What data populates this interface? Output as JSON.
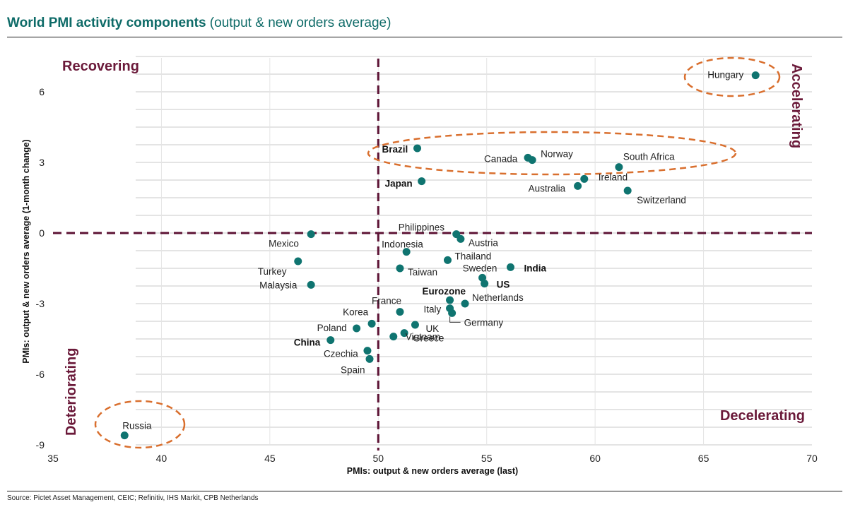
{
  "header": {
    "title_bold": "World PMI activity components",
    "title_rest": " (output & new orders average)"
  },
  "source": "Source: Pictet Asset Management, CEIC; Refinitiv, IHS Markit, CPB Netherlands",
  "colors": {
    "point": "#0f7470",
    "quadrant_line": "#5c1234",
    "quadrant_text": "#6b1a3a",
    "circle": "#d96f2e",
    "grid": "#c8c8c8",
    "title": "#0e6b68"
  },
  "chart_data": {
    "type": "scatter",
    "xlabel": "PMIs: output & new orders average (last)",
    "ylabel": "PMIs: output & new orders average (1-month change)",
    "xlim": [
      35,
      70
    ],
    "ylim": [
      -9,
      7.5
    ],
    "xticks": [
      35,
      40,
      45,
      50,
      55,
      60,
      65,
      70
    ],
    "yticks": [
      -9,
      -6,
      -3,
      0,
      3,
      6
    ],
    "dividers": {
      "x": 50,
      "y": 0
    },
    "quadrants": {
      "top_left": "Recovering",
      "top_right": "Accelerating",
      "bottom_left": "Deteriorating",
      "bottom_right": "Decelerating"
    },
    "points": [
      {
        "name": "Hungary",
        "x": 67.4,
        "y": 6.7,
        "bold": false
      },
      {
        "name": "Brazil",
        "x": 51.8,
        "y": 3.6,
        "bold": true
      },
      {
        "name": "Canada",
        "x": 56.9,
        "y": 3.2,
        "bold": false
      },
      {
        "name": "Norway",
        "x": 57.1,
        "y": 3.1,
        "bold": false
      },
      {
        "name": "South Africa",
        "x": 61.1,
        "y": 2.8,
        "bold": false
      },
      {
        "name": "Ireland",
        "x": 59.5,
        "y": 2.3,
        "bold": false
      },
      {
        "name": "Japan",
        "x": 52.0,
        "y": 2.2,
        "bold": true
      },
      {
        "name": "Australia",
        "x": 59.2,
        "y": 2.0,
        "bold": false
      },
      {
        "name": "Switzerland",
        "x": 61.5,
        "y": 1.8,
        "bold": false
      },
      {
        "name": "Philippines",
        "x": 53.6,
        "y": -0.05,
        "bold": false
      },
      {
        "name": "Austria",
        "x": 53.8,
        "y": -0.25,
        "bold": false
      },
      {
        "name": "Mexico",
        "x": 46.9,
        "y": -0.05,
        "bold": false
      },
      {
        "name": "Indonesia",
        "x": 51.3,
        "y": -0.8,
        "bold": false
      },
      {
        "name": "Thailand",
        "x": 53.2,
        "y": -1.15,
        "bold": false
      },
      {
        "name": "Turkey",
        "x": 46.3,
        "y": -1.2,
        "bold": false
      },
      {
        "name": "Taiwan",
        "x": 51.0,
        "y": -1.5,
        "bold": false
      },
      {
        "name": "Sweden",
        "x": 54.8,
        "y": -1.9,
        "bold": false
      },
      {
        "name": "India",
        "x": 56.1,
        "y": -1.45,
        "bold": true
      },
      {
        "name": "US",
        "x": 54.9,
        "y": -2.15,
        "bold": true
      },
      {
        "name": "Malaysia",
        "x": 46.9,
        "y": -2.2,
        "bold": false
      },
      {
        "name": "Eurozone",
        "x": 53.3,
        "y": -2.85,
        "bold": true
      },
      {
        "name": "Netherlands",
        "x": 54.0,
        "y": -3.0,
        "bold": false
      },
      {
        "name": "France",
        "x": 51.0,
        "y": -3.35,
        "bold": false
      },
      {
        "name": "Italy",
        "x": 53.3,
        "y": -3.2,
        "bold": false
      },
      {
        "name": "Germany",
        "x": 53.4,
        "y": -3.4,
        "bold": false
      },
      {
        "name": "Korea",
        "x": 49.7,
        "y": -3.85,
        "bold": false
      },
      {
        "name": "Poland",
        "x": 49.0,
        "y": -4.05,
        "bold": false
      },
      {
        "name": "UK",
        "x": 51.7,
        "y": -3.9,
        "bold": false
      },
      {
        "name": "Greece",
        "x": 51.2,
        "y": -4.25,
        "bold": false
      },
      {
        "name": "China",
        "x": 47.8,
        "y": -4.55,
        "bold": true
      },
      {
        "name": "Vietnam",
        "x": 50.7,
        "y": -4.4,
        "bold": false
      },
      {
        "name": "Czechia",
        "x": 49.5,
        "y": -5.0,
        "bold": false
      },
      {
        "name": "Spain",
        "x": 49.6,
        "y": -5.35,
        "bold": false
      },
      {
        "name": "Russia",
        "x": 38.3,
        "y": -8.6,
        "bold": false
      }
    ],
    "highlight_circles": [
      "Hungary",
      "Brazil-Canada-Norway-South Africa",
      "Russia"
    ]
  }
}
